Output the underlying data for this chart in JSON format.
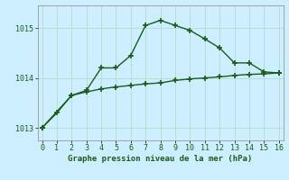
{
  "xlabel": "Graphe pression niveau de la mer (hPa)",
  "bg_color": "#cceeff",
  "grid_color": "#b8ddd0",
  "line_color": "#1a5c1a",
  "line1_x": [
    0,
    1,
    2,
    3,
    4,
    5,
    6,
    7,
    8,
    9,
    10,
    11,
    12,
    13,
    14,
    15,
    16
  ],
  "line1_y": [
    1013.0,
    1013.3,
    1013.65,
    1013.75,
    1014.2,
    1014.2,
    1014.45,
    1015.05,
    1015.15,
    1015.05,
    1014.95,
    1014.78,
    1014.6,
    1014.3,
    1014.3,
    1014.12,
    1014.1
  ],
  "line2_x": [
    0,
    2,
    3,
    4,
    5,
    6,
    7,
    8,
    9,
    10,
    11,
    12,
    13,
    14,
    15,
    16
  ],
  "line2_y": [
    1013.0,
    1013.65,
    1013.72,
    1013.78,
    1013.82,
    1013.85,
    1013.88,
    1013.9,
    1013.95,
    1013.98,
    1014.0,
    1014.02,
    1014.05,
    1014.07,
    1014.08,
    1014.1
  ],
  "ylim": [
    1012.75,
    1015.45
  ],
  "yticks": [
    1013,
    1014,
    1015
  ],
  "xlim": [
    -0.3,
    16.3
  ],
  "xticks": [
    0,
    1,
    2,
    3,
    4,
    5,
    6,
    7,
    8,
    9,
    10,
    11,
    12,
    13,
    14,
    15,
    16
  ],
  "marker": "+",
  "markersize": 4,
  "linewidth": 1.0,
  "xlabel_fontsize": 6.5,
  "tick_fontsize": 6
}
